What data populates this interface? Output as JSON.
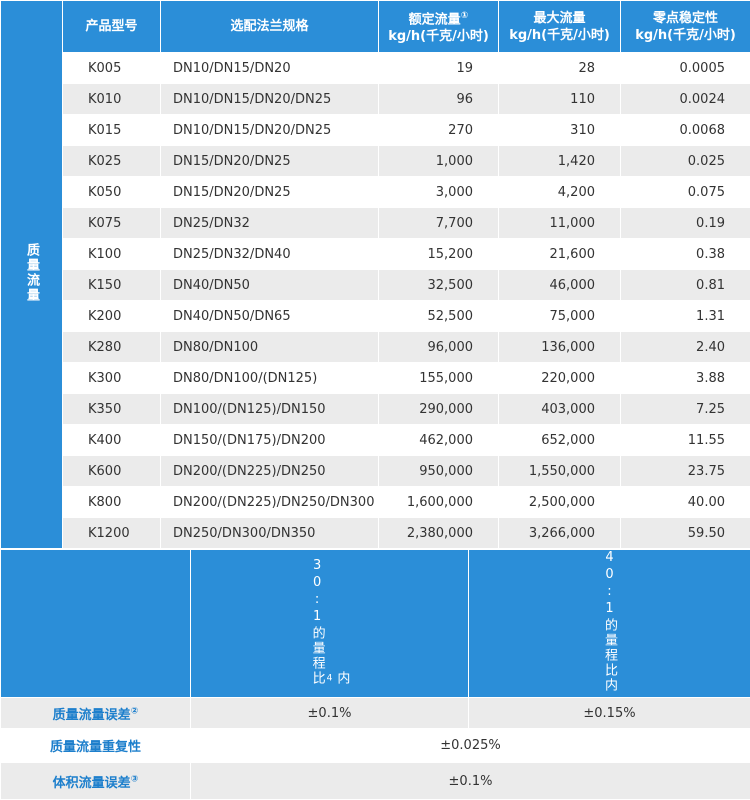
{
  "group": "质量流量",
  "header": {
    "columns": [
      {
        "title": "产品型号"
      },
      {
        "title": "选配法兰规格"
      },
      {
        "title": "额定流量",
        "note": "①",
        "unit": "kg/h(千克/小时)"
      },
      {
        "title": "最大流量",
        "unit": "kg/h(千克/小时)"
      },
      {
        "title": "零点稳定性",
        "unit": "kg/h(千克/小时)"
      }
    ]
  },
  "table": {
    "rows": [
      [
        "K005",
        "DN10/DN15/DN20",
        "19",
        "28",
        "0.0005"
      ],
      [
        "K010",
        "DN10/DN15/DN20/DN25",
        "96",
        "110",
        "0.0024"
      ],
      [
        "K015",
        "DN10/DN15/DN20/DN25",
        "270",
        "310",
        "0.0068"
      ],
      [
        "K025",
        "DN15/DN20/DN25",
        "1,000",
        "1,420",
        "0.025"
      ],
      [
        "K050",
        "DN15/DN20/DN25",
        "3,000",
        "4,200",
        "0.075"
      ],
      [
        "K075",
        "DN25/DN32",
        "7,700",
        "11,000",
        "0.19"
      ],
      [
        "K100",
        "DN25/DN32/DN40",
        "15,200",
        "21,600",
        "0.38"
      ],
      [
        "K150",
        "DN40/DN50",
        "32,500",
        "46,000",
        "0.81"
      ],
      [
        "K200",
        "DN40/DN50/DN65",
        "52,500",
        "75,000",
        "1.31"
      ],
      [
        "K280",
        "DN80/DN100",
        "96,000",
        "136,000",
        "2.40"
      ],
      [
        "K300",
        "DN80/DN100/(DN125)",
        "155,000",
        "220,000",
        "3.88"
      ],
      [
        "K350",
        "DN100/(DN125)/DN150",
        "290,000",
        "403,000",
        "7.25"
      ],
      [
        "K400",
        "DN150/(DN175)/DN200",
        "462,000",
        "652,000",
        "11.55"
      ],
      [
        "K600",
        "DN200/(DN225)/DN250",
        "950,000",
        "1,550,000",
        "23.75"
      ],
      [
        "K800",
        "DN200/(DN225)/DN250/DN300",
        "1,600,000",
        "2,500,000",
        "40.00"
      ],
      [
        "K1200",
        "DN250/DN300/DN350",
        "2,380,000",
        "3,266,000",
        "59.50"
      ]
    ]
  },
  "footer": {
    "ranges": [
      {
        "text": "30:1的量程比",
        "note": "4",
        "after": "内"
      },
      {
        "text": "40:1的量程比内"
      }
    ],
    "rows": [
      {
        "label": "质量流量误差",
        "note": "②",
        "values": [
          "±0.1%",
          "±0.15%"
        ]
      },
      {
        "label": "质量流量重复性",
        "values": [
          "±0.025%"
        ]
      },
      {
        "label": "体积流量误差",
        "note": "③",
        "values": [
          "±0.1%"
        ]
      }
    ]
  }
}
